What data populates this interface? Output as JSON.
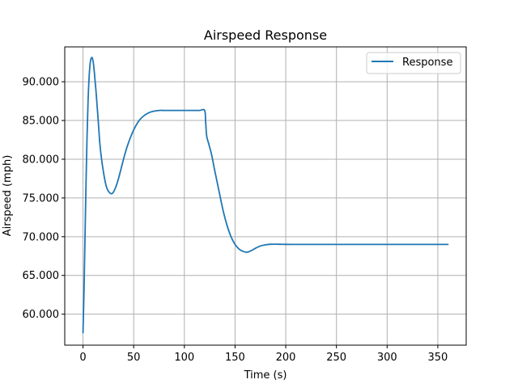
{
  "chart_data": {
    "type": "line",
    "title": "Airspeed Response",
    "xlabel": "Time (s)",
    "ylabel": "Airspeed (mph)",
    "xlim": [
      -18,
      378
    ],
    "ylim": [
      56.0,
      94.5
    ],
    "xticks": [
      0,
      50,
      100,
      150,
      200,
      250,
      300,
      350
    ],
    "xtick_labels": [
      "0",
      "50",
      "100",
      "150",
      "200",
      "250",
      "300",
      "350"
    ],
    "yticks": [
      60,
      65,
      70,
      75,
      80,
      85,
      90
    ],
    "ytick_labels": [
      "60.000",
      "65.000",
      "70.000",
      "75.000",
      "80.000",
      "85.000",
      "90.000"
    ],
    "grid": true,
    "legend": {
      "position": "top-right",
      "entries": [
        "Response"
      ]
    },
    "series": [
      {
        "name": "Response",
        "color": "#1f77b4",
        "x": [
          0,
          1,
          2,
          3,
          4,
          5,
          6,
          7,
          8,
          9,
          10,
          11,
          12,
          13,
          15,
          17,
          20,
          23,
          26,
          29,
          32,
          35,
          38,
          41,
          44,
          48,
          52,
          56,
          60,
          65,
          70,
          75,
          80,
          85,
          90,
          95,
          100,
          105,
          110,
          115,
          120,
          121,
          122,
          124,
          127,
          130,
          134,
          138,
          142,
          146,
          150,
          154,
          158,
          162,
          166,
          170,
          175,
          180,
          185,
          190,
          195,
          200,
          210,
          220,
          230,
          240,
          250,
          275,
          300,
          325,
          360
        ],
        "y": [
          57.6,
          63.0,
          70.0,
          77.0,
          83.0,
          87.5,
          90.5,
          92.3,
          93.0,
          93.1,
          92.6,
          91.5,
          90.0,
          88.5,
          85.0,
          81.5,
          78.5,
          76.5,
          75.7,
          75.6,
          76.3,
          77.5,
          79.0,
          80.5,
          81.8,
          83.2,
          84.3,
          85.1,
          85.6,
          86.0,
          86.2,
          86.3,
          86.3,
          86.3,
          86.3,
          86.3,
          86.3,
          86.3,
          86.3,
          86.3,
          86.3,
          84.8,
          83.0,
          82.0,
          80.5,
          78.5,
          76.0,
          73.5,
          71.5,
          70.0,
          69.0,
          68.4,
          68.1,
          68.0,
          68.2,
          68.5,
          68.8,
          68.95,
          69.02,
          69.03,
          69.02,
          69.01,
          69.0,
          69.0,
          69.0,
          69.0,
          69.0,
          69.0,
          69.0,
          69.0,
          69.0
        ]
      }
    ]
  }
}
